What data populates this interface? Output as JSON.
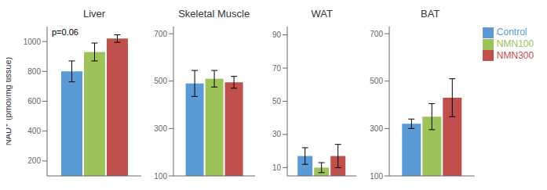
{
  "chart_data": [
    {
      "type": "bar",
      "title": "Liver",
      "y_label": "NAD⁺ (pmol/mg tissue)",
      "annotation": "p=0.06",
      "categories": [
        null
      ],
      "series": [
        {
          "name": "Control",
          "color": "#5b9bd5",
          "values": [
            800
          ],
          "errors": [
            70
          ]
        },
        {
          "name": "NMN100",
          "color": "#9dc35a",
          "values": [
            930
          ],
          "errors": [
            60
          ]
        },
        {
          "name": "NMN300",
          "color": "#c0504d",
          "values": [
            1020
          ],
          "errors": [
            25
          ]
        }
      ],
      "ylim": [
        100,
        1100
      ],
      "yticks": [
        200,
        400,
        600,
        800,
        1000
      ],
      "grid": false,
      "tick_labels": "y"
    },
    {
      "type": "bar",
      "title": "Skeletal Muscle",
      "categories": [
        null
      ],
      "series": [
        {
          "name": "Control",
          "color": "#5b9bd5",
          "values": [
            490
          ],
          "errors": [
            55
          ]
        },
        {
          "name": "NMN100",
          "color": "#9dc35a",
          "values": [
            510
          ],
          "errors": [
            35
          ]
        },
        {
          "name": "NMN300",
          "color": "#c0504d",
          "values": [
            495
          ],
          "errors": [
            25
          ]
        }
      ],
      "ylim": [
        100,
        730
      ],
      "yticks": [
        100,
        300,
        500,
        700
      ],
      "grid": false,
      "tick_labels": "y"
    },
    {
      "type": "bar",
      "title": "WAT",
      "categories": [
        null
      ],
      "series": [
        {
          "name": "Control",
          "color": "#5b9bd5",
          "values": [
            17
          ],
          "errors": [
            5
          ]
        },
        {
          "name": "NMN100",
          "color": "#9dc35a",
          "values": [
            10
          ],
          "errors": [
            3
          ]
        },
        {
          "name": "NMN300",
          "color": "#c0504d",
          "values": [
            17
          ],
          "errors": [
            7
          ]
        }
      ],
      "ylim": [
        5,
        95
      ],
      "yticks": [
        10,
        30,
        50,
        70,
        90
      ],
      "grid": false,
      "tick_labels": "y"
    },
    {
      "type": "bar",
      "title": "BAT",
      "categories": [
        null
      ],
      "series": [
        {
          "name": "Control",
          "color": "#5b9bd5",
          "values": [
            320
          ],
          "errors": [
            20
          ]
        },
        {
          "name": "NMN100",
          "color": "#9dc35a",
          "values": [
            350
          ],
          "errors": [
            55
          ]
        },
        {
          "name": "NMN300",
          "color": "#c0504d",
          "values": [
            430
          ],
          "errors": [
            80
          ]
        }
      ],
      "ylim": [
        100,
        730
      ],
      "yticks": [
        100,
        300,
        500,
        700
      ],
      "grid": false,
      "tick_labels": "y",
      "legend": "right"
    }
  ]
}
